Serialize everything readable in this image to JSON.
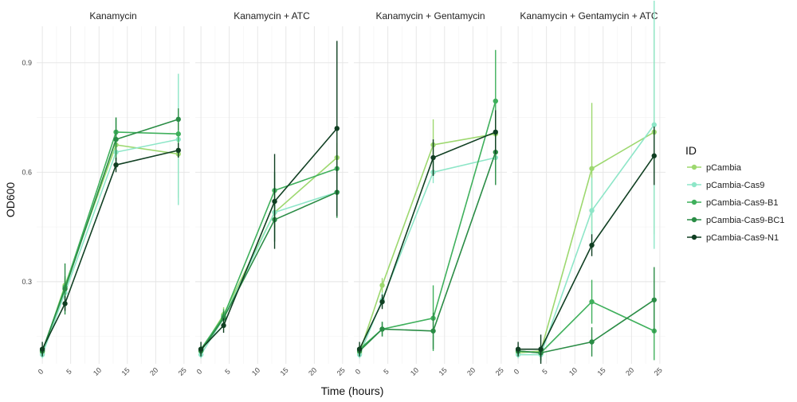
{
  "chart_data": {
    "type": "line",
    "xlabel": "Time (hours)",
    "ylabel": "OD600",
    "xlim": [
      -1,
      26
    ],
    "ylim": [
      0.075,
      1.0
    ],
    "x_ticks": [
      0,
      5,
      10,
      15,
      20,
      25
    ],
    "y_ticks": [
      0.3,
      0.6,
      0.9
    ],
    "x_tick_labels": [
      "0",
      "5",
      "10",
      "15",
      "20",
      "25"
    ],
    "y_tick_labels": [
      "0.3",
      "0.6",
      "0.9"
    ],
    "grid": true,
    "legend": {
      "title": "ID",
      "position": "right",
      "labels": [
        "pCambia",
        "pCambia-Cas9",
        "pCambia-Cas9-B1",
        "pCambia-Cas9-BC1",
        "pCambia-Cas9-N1"
      ]
    },
    "colors": [
      "#9dd86f",
      "#8ee6c8",
      "#3fb05c",
      "#2a8c45",
      "#103f22"
    ],
    "panels": [
      {
        "title": "Kanamycin",
        "series": [
          {
            "name": "pCambia",
            "x": [
              0,
              4,
              13,
              24
            ],
            "y": [
              0.105,
              0.29,
              0.675,
              0.65
            ],
            "err": [
              0.01,
              0.02,
              0.04,
              0.12
            ]
          },
          {
            "name": "pCambia-Cas9",
            "x": [
              0,
              4,
              13,
              24
            ],
            "y": [
              0.1,
              0.27,
              0.655,
              0.69
            ],
            "err": [
              0.01,
              0.02,
              0.03,
              0.18
            ]
          },
          {
            "name": "pCambia-Cas9-B1",
            "x": [
              0,
              4,
              13,
              24
            ],
            "y": [
              0.11,
              0.285,
              0.71,
              0.705
            ],
            "err": [
              0.01,
              0.03,
              0.04,
              0.03
            ]
          },
          {
            "name": "pCambia-Cas9-BC1",
            "x": [
              0,
              4,
              13,
              24
            ],
            "y": [
              0.11,
              0.28,
              0.69,
              0.745
            ],
            "err": [
              0.01,
              0.07,
              0.06,
              0.03
            ]
          },
          {
            "name": "pCambia-Cas9-N1",
            "x": [
              0,
              4,
              13,
              24
            ],
            "y": [
              0.115,
              0.24,
              0.62,
              0.66
            ],
            "err": [
              0.02,
              0.02,
              0.02,
              0.02
            ]
          }
        ]
      },
      {
        "title": "Kanamycin + ATC",
        "series": [
          {
            "name": "pCambia",
            "x": [
              0,
              4,
              13,
              24
            ],
            "y": [
              0.11,
              0.21,
              0.49,
              0.64
            ],
            "err": [
              0.01,
              0.02,
              0.04,
              0.04
            ]
          },
          {
            "name": "pCambia-Cas9",
            "x": [
              0,
              4,
              13,
              24
            ],
            "y": [
              0.1,
              0.2,
              0.49,
              0.545
            ],
            "err": [
              0.01,
              0.02,
              0.03,
              0.07
            ]
          },
          {
            "name": "pCambia-Cas9-B1",
            "x": [
              0,
              4,
              13,
              24
            ],
            "y": [
              0.115,
              0.205,
              0.55,
              0.61
            ],
            "err": [
              0.01,
              0.02,
              0.05,
              0.05
            ]
          },
          {
            "name": "pCambia-Cas9-BC1",
            "x": [
              0,
              4,
              13,
              24
            ],
            "y": [
              0.11,
              0.2,
              0.47,
              0.545
            ],
            "err": [
              0.01,
              0.02,
              0.06,
              0.07
            ]
          },
          {
            "name": "pCambia-Cas9-N1",
            "x": [
              0,
              4,
              13,
              24
            ],
            "y": [
              0.115,
              0.18,
              0.52,
              0.72
            ],
            "err": [
              0.02,
              0.02,
              0.13,
              0.24
            ]
          }
        ]
      },
      {
        "title": "Kanamycin + Gentamycin",
        "series": [
          {
            "name": "pCambia",
            "x": [
              0,
              4,
              13,
              24
            ],
            "y": [
              0.105,
              0.29,
              0.675,
              0.705
            ],
            "err": [
              0.01,
              0.02,
              0.07,
              0.06
            ]
          },
          {
            "name": "pCambia-Cas9",
            "x": [
              0,
              4,
              13,
              24
            ],
            "y": [
              0.1,
              0.25,
              0.6,
              0.64
            ],
            "err": [
              0.01,
              0.02,
              0.03,
              0.04
            ]
          },
          {
            "name": "pCambia-Cas9-B1",
            "x": [
              0,
              4,
              13,
              24
            ],
            "y": [
              0.115,
              0.17,
              0.2,
              0.795
            ],
            "err": [
              0.01,
              0.02,
              0.09,
              0.14
            ]
          },
          {
            "name": "pCambia-Cas9-BC1",
            "x": [
              0,
              4,
              13,
              24
            ],
            "y": [
              0.11,
              0.17,
              0.165,
              0.655
            ],
            "err": [
              0.01,
              0.02,
              0.05,
              0.09
            ]
          },
          {
            "name": "pCambia-Cas9-N1",
            "x": [
              0,
              4,
              13,
              24
            ],
            "y": [
              0.115,
              0.245,
              0.64,
              0.71
            ],
            "err": [
              0.02,
              0.02,
              0.05,
              0.06
            ]
          }
        ]
      },
      {
        "title": "Kanamycin + Gentamycin + ATC",
        "series": [
          {
            "name": "pCambia",
            "x": [
              0,
              4,
              13,
              24
            ],
            "y": [
              0.105,
              0.11,
              0.61,
              0.71
            ],
            "err": [
              0.01,
              0.01,
              0.18,
              0.28
            ]
          },
          {
            "name": "pCambia-Cas9",
            "x": [
              0,
              4,
              13,
              24
            ],
            "y": [
              0.1,
              0.1,
              0.495,
              0.73
            ],
            "err": [
              0.01,
              0.02,
              0.09,
              0.34
            ]
          },
          {
            "name": "pCambia-Cas9-B1",
            "x": [
              0,
              4,
              13,
              24
            ],
            "y": [
              0.11,
              0.105,
              0.245,
              0.165
            ],
            "err": [
              0.01,
              0.02,
              0.06,
              0.08
            ]
          },
          {
            "name": "pCambia-Cas9-BC1",
            "x": [
              0,
              4,
              13,
              24
            ],
            "y": [
              0.11,
              0.105,
              0.135,
              0.25
            ],
            "err": [
              0.01,
              0.02,
              0.04,
              0.09
            ]
          },
          {
            "name": "pCambia-Cas9-N1",
            "x": [
              0,
              4,
              13,
              24
            ],
            "y": [
              0.115,
              0.115,
              0.4,
              0.645
            ],
            "err": [
              0.02,
              0.04,
              0.03,
              0.08
            ]
          }
        ]
      }
    ]
  }
}
